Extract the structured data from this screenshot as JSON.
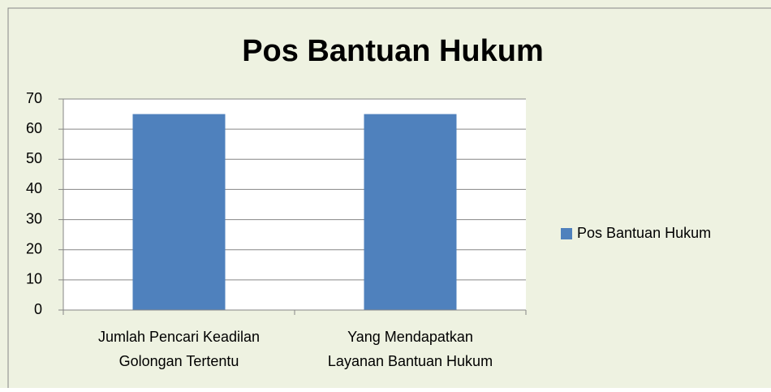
{
  "chart_data": {
    "type": "bar",
    "title": "Pos Bantuan Hukum",
    "categories": [
      [
        "Jumlah Pencari Keadilan",
        "Golongan Tertentu"
      ],
      [
        "Yang Mendapatkan",
        "Layanan Bantuan Hukum"
      ]
    ],
    "series": [
      {
        "name": "Pos Bantuan Hukum",
        "color": "#4f81bd",
        "values": [
          65,
          65
        ]
      }
    ],
    "ylim": [
      0,
      70
    ],
    "yticks": [
      0,
      10,
      20,
      30,
      40,
      50,
      60,
      70
    ],
    "grid": true,
    "legend": "right"
  }
}
